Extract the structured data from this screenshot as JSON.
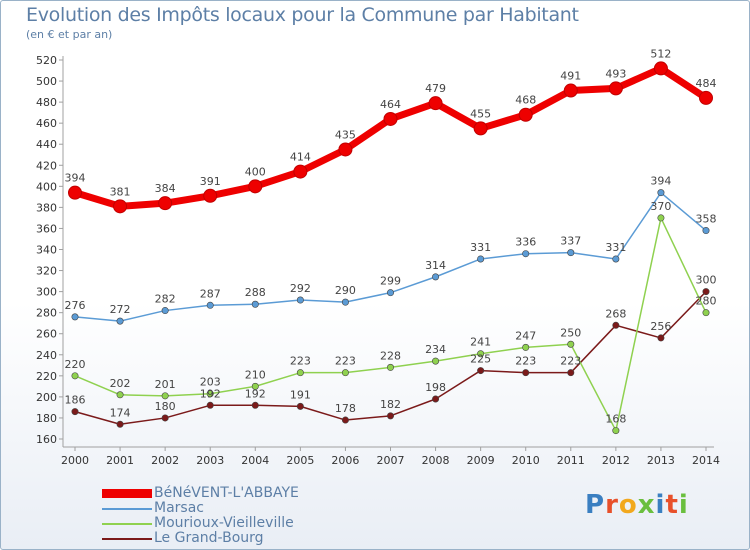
{
  "title": "Evolution des Impôts locaux pour la Commune par Habitant",
  "subtitle": "(en € et par an)",
  "logo": {
    "text": "Proxiti",
    "letters": [
      "P",
      "r",
      "o",
      "x",
      "i",
      "t",
      "i"
    ],
    "colors": [
      "#3a7fc1",
      "#e8502a",
      "#f2a81d",
      "#6abf3e",
      "#3a7fc1",
      "#e8502a",
      "#6abf3e"
    ]
  },
  "chart_data": {
    "type": "line",
    "categories": [
      "2000",
      "2001",
      "2002",
      "2003",
      "2004",
      "2005",
      "2006",
      "2007",
      "2008",
      "2009",
      "2010",
      "2011",
      "2012",
      "2013",
      "2014"
    ],
    "ylim": [
      160,
      520
    ],
    "yticks": [
      160,
      180,
      200,
      220,
      240,
      260,
      280,
      300,
      320,
      340,
      360,
      380,
      400,
      420,
      440,
      460,
      480,
      500,
      520
    ],
    "grid": false,
    "legend_position": "bottom-left",
    "series": [
      {
        "name": "BéNéVENT-L'ABBAYE",
        "color": "#ee0000",
        "values": [
          394,
          381,
          384,
          391,
          400,
          414,
          435,
          464,
          479,
          455,
          468,
          491,
          493,
          512,
          484
        ],
        "labels": [
          "394",
          "381",
          "384",
          "391",
          "400",
          "414",
          "435",
          "464",
          "479",
          "455",
          "468",
          "491",
          "493",
          "512",
          "484"
        ]
      },
      {
        "name": "Marsac",
        "color": "#5b9bd5",
        "values": [
          276,
          272,
          282,
          287,
          288,
          292,
          290,
          299,
          314,
          331,
          336,
          337,
          331,
          394,
          358
        ],
        "labels": [
          "276",
          "272",
          "282",
          "287",
          "288",
          "292",
          "290",
          "299",
          "314",
          "331",
          "336",
          "337",
          "331",
          "394",
          "358"
        ]
      },
      {
        "name": "Mourioux-Vieilleville",
        "color": "#8fd14f",
        "values": [
          220,
          202,
          201,
          203,
          210,
          223,
          223,
          228,
          234,
          241,
          247,
          250,
          168,
          370,
          280
        ],
        "labels": [
          "220",
          "202",
          "201",
          "203",
          "210",
          "223",
          "223",
          "228",
          "234",
          "241",
          "247",
          "250",
          "168",
          "370",
          "280"
        ]
      },
      {
        "name": "Le Grand-Bourg",
        "color": "#7b1a1a",
        "values": [
          186,
          174,
          180,
          192,
          192,
          191,
          178,
          182,
          198,
          225,
          223,
          223,
          268,
          256,
          300
        ],
        "labels": [
          "186",
          "174",
          "180",
          "192",
          "192",
          "191",
          "178",
          "182",
          "198",
          "225",
          "223",
          "223",
          "268",
          "256",
          "300"
        ]
      }
    ]
  }
}
